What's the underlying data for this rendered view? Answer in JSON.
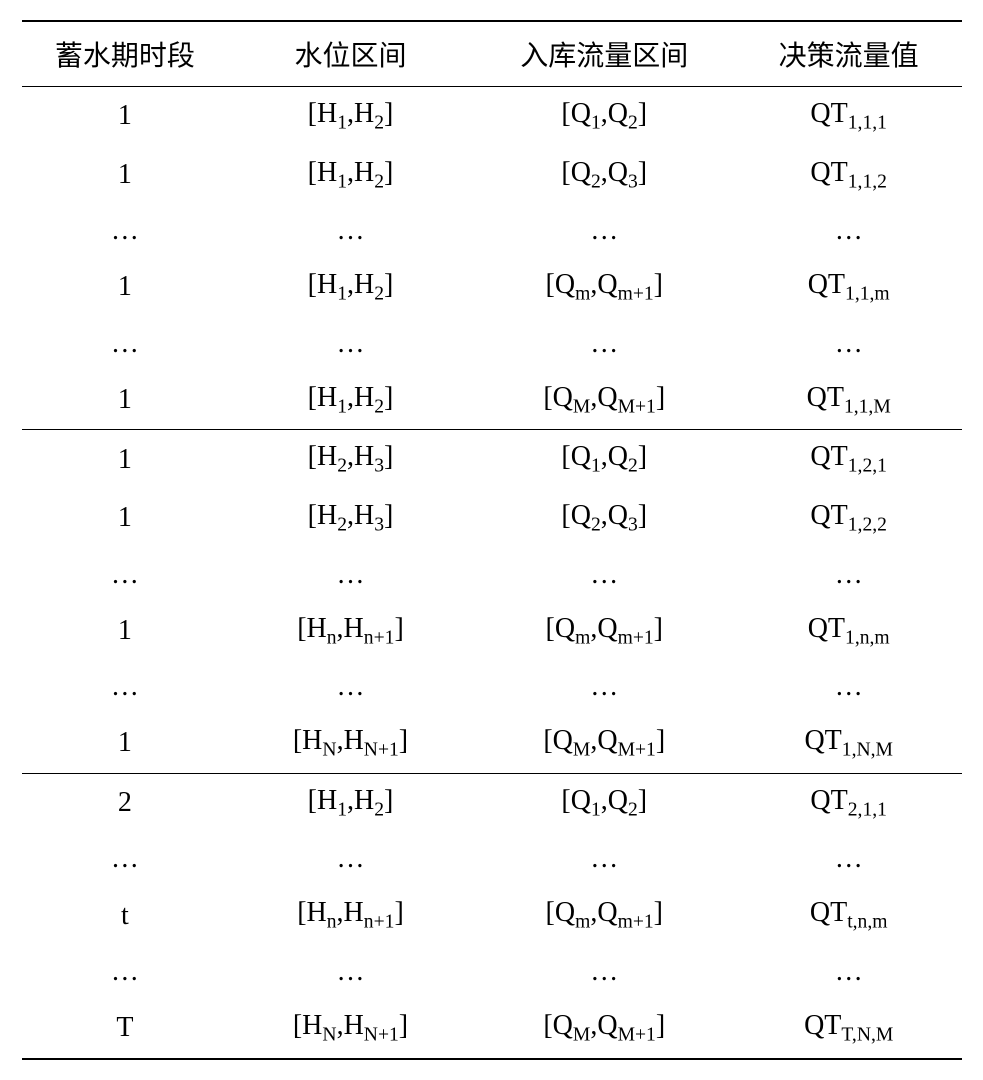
{
  "table": {
    "headers": {
      "period": "蓄水期时段",
      "waterLevel": "水位区间",
      "inflowRange": "入库流量区间",
      "decisionFlow": "决策流量值"
    },
    "sections": [
      {
        "rows": [
          {
            "period": "1",
            "waterLevel": "[H₁,H₂]",
            "inflow": "[Q₁,Q₂]",
            "decision": "QT₁,₁,₁"
          },
          {
            "period": "1",
            "waterLevel": "[H₁,H₂]",
            "inflow": "[Q₂,Q₃]",
            "decision": "QT₁,₁,₂"
          },
          {
            "period": "…",
            "waterLevel": "…",
            "inflow": "…",
            "decision": "…"
          },
          {
            "period": "1",
            "waterLevel": "[H₁,H₂]",
            "inflow": "[Qₘ,Qₘ₊₁]",
            "decision": "QT₁,₁,ₘ"
          },
          {
            "period": "…",
            "waterLevel": "…",
            "inflow": "…",
            "decision": "…"
          },
          {
            "period": "1",
            "waterLevel": "[H₁,H₂]",
            "inflow": "[Q_M,Q_M+1]",
            "decision": "QT₁,₁,M"
          }
        ]
      },
      {
        "rows": [
          {
            "period": "1",
            "waterLevel": "[H₂,H₃]",
            "inflow": "[Q₁,Q₂]",
            "decision": "QT₁,₂,₁"
          },
          {
            "period": "1",
            "waterLevel": "[H₂,H₃]",
            "inflow": "[Q₂,Q₃]",
            "decision": "QT₁,₂,₂"
          },
          {
            "period": "…",
            "waterLevel": "…",
            "inflow": "…",
            "decision": "…"
          },
          {
            "period": "1",
            "waterLevel": "[Hₙ,Hₙ₊₁]",
            "inflow": "[Qₘ,Qₘ₊₁]",
            "decision": "QT₁,ₙ,ₘ"
          },
          {
            "period": "…",
            "waterLevel": "…",
            "inflow": "…",
            "decision": "…"
          },
          {
            "period": "1",
            "waterLevel": "[H_N,H_N+1]",
            "inflow": "[Q_M,Q_M+1]",
            "decision": "QT₁,N,M"
          }
        ]
      },
      {
        "rows": [
          {
            "period": "2",
            "waterLevel": "[H₁,H₂]",
            "inflow": "[Q₁,Q₂]",
            "decision": "QT₂,₁,₁"
          },
          {
            "period": "…",
            "waterLevel": "…",
            "inflow": "…",
            "decision": "…"
          },
          {
            "period": "t",
            "waterLevel": "[Hₙ,Hₙ₊₁]",
            "inflow": "[Qₘ,Qₘ₊₁]",
            "decision": "QTₜ,ₙ,ₘ"
          },
          {
            "period": "…",
            "waterLevel": "…",
            "inflow": "…",
            "decision": "…"
          },
          {
            "period": "T",
            "waterLevel": "[H_N,H_N+1]",
            "inflow": "[Q_M,Q_M+1]",
            "decision": "QT_T,N,M"
          }
        ]
      }
    ]
  }
}
